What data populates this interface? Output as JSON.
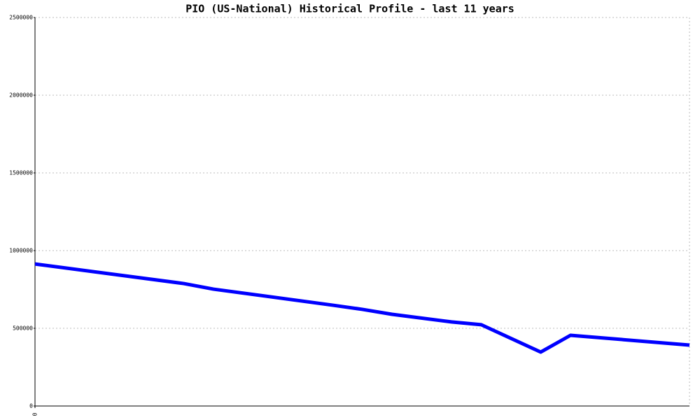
{
  "chart_data": {
    "type": "line",
    "title": "PIO (US-National) Historical Profile - last 11 years",
    "x": [
      0,
      5,
      6,
      10,
      11,
      12,
      14,
      15,
      17,
      18,
      22
    ],
    "series": [
      {
        "color": "#0000ff",
        "values": [
          914000,
          788000,
          752000,
          649000,
          622000,
          590000,
          541000,
          523000,
          347000,
          455000,
          392000
        ]
      }
    ],
    "xlim": [
      0,
      22
    ],
    "xticks": [
      0
    ],
    "ylim": [
      0,
      2500000
    ],
    "yticks": [
      0,
      500000,
      1000000,
      1500000,
      2000000,
      2500000
    ],
    "grid": true
  }
}
